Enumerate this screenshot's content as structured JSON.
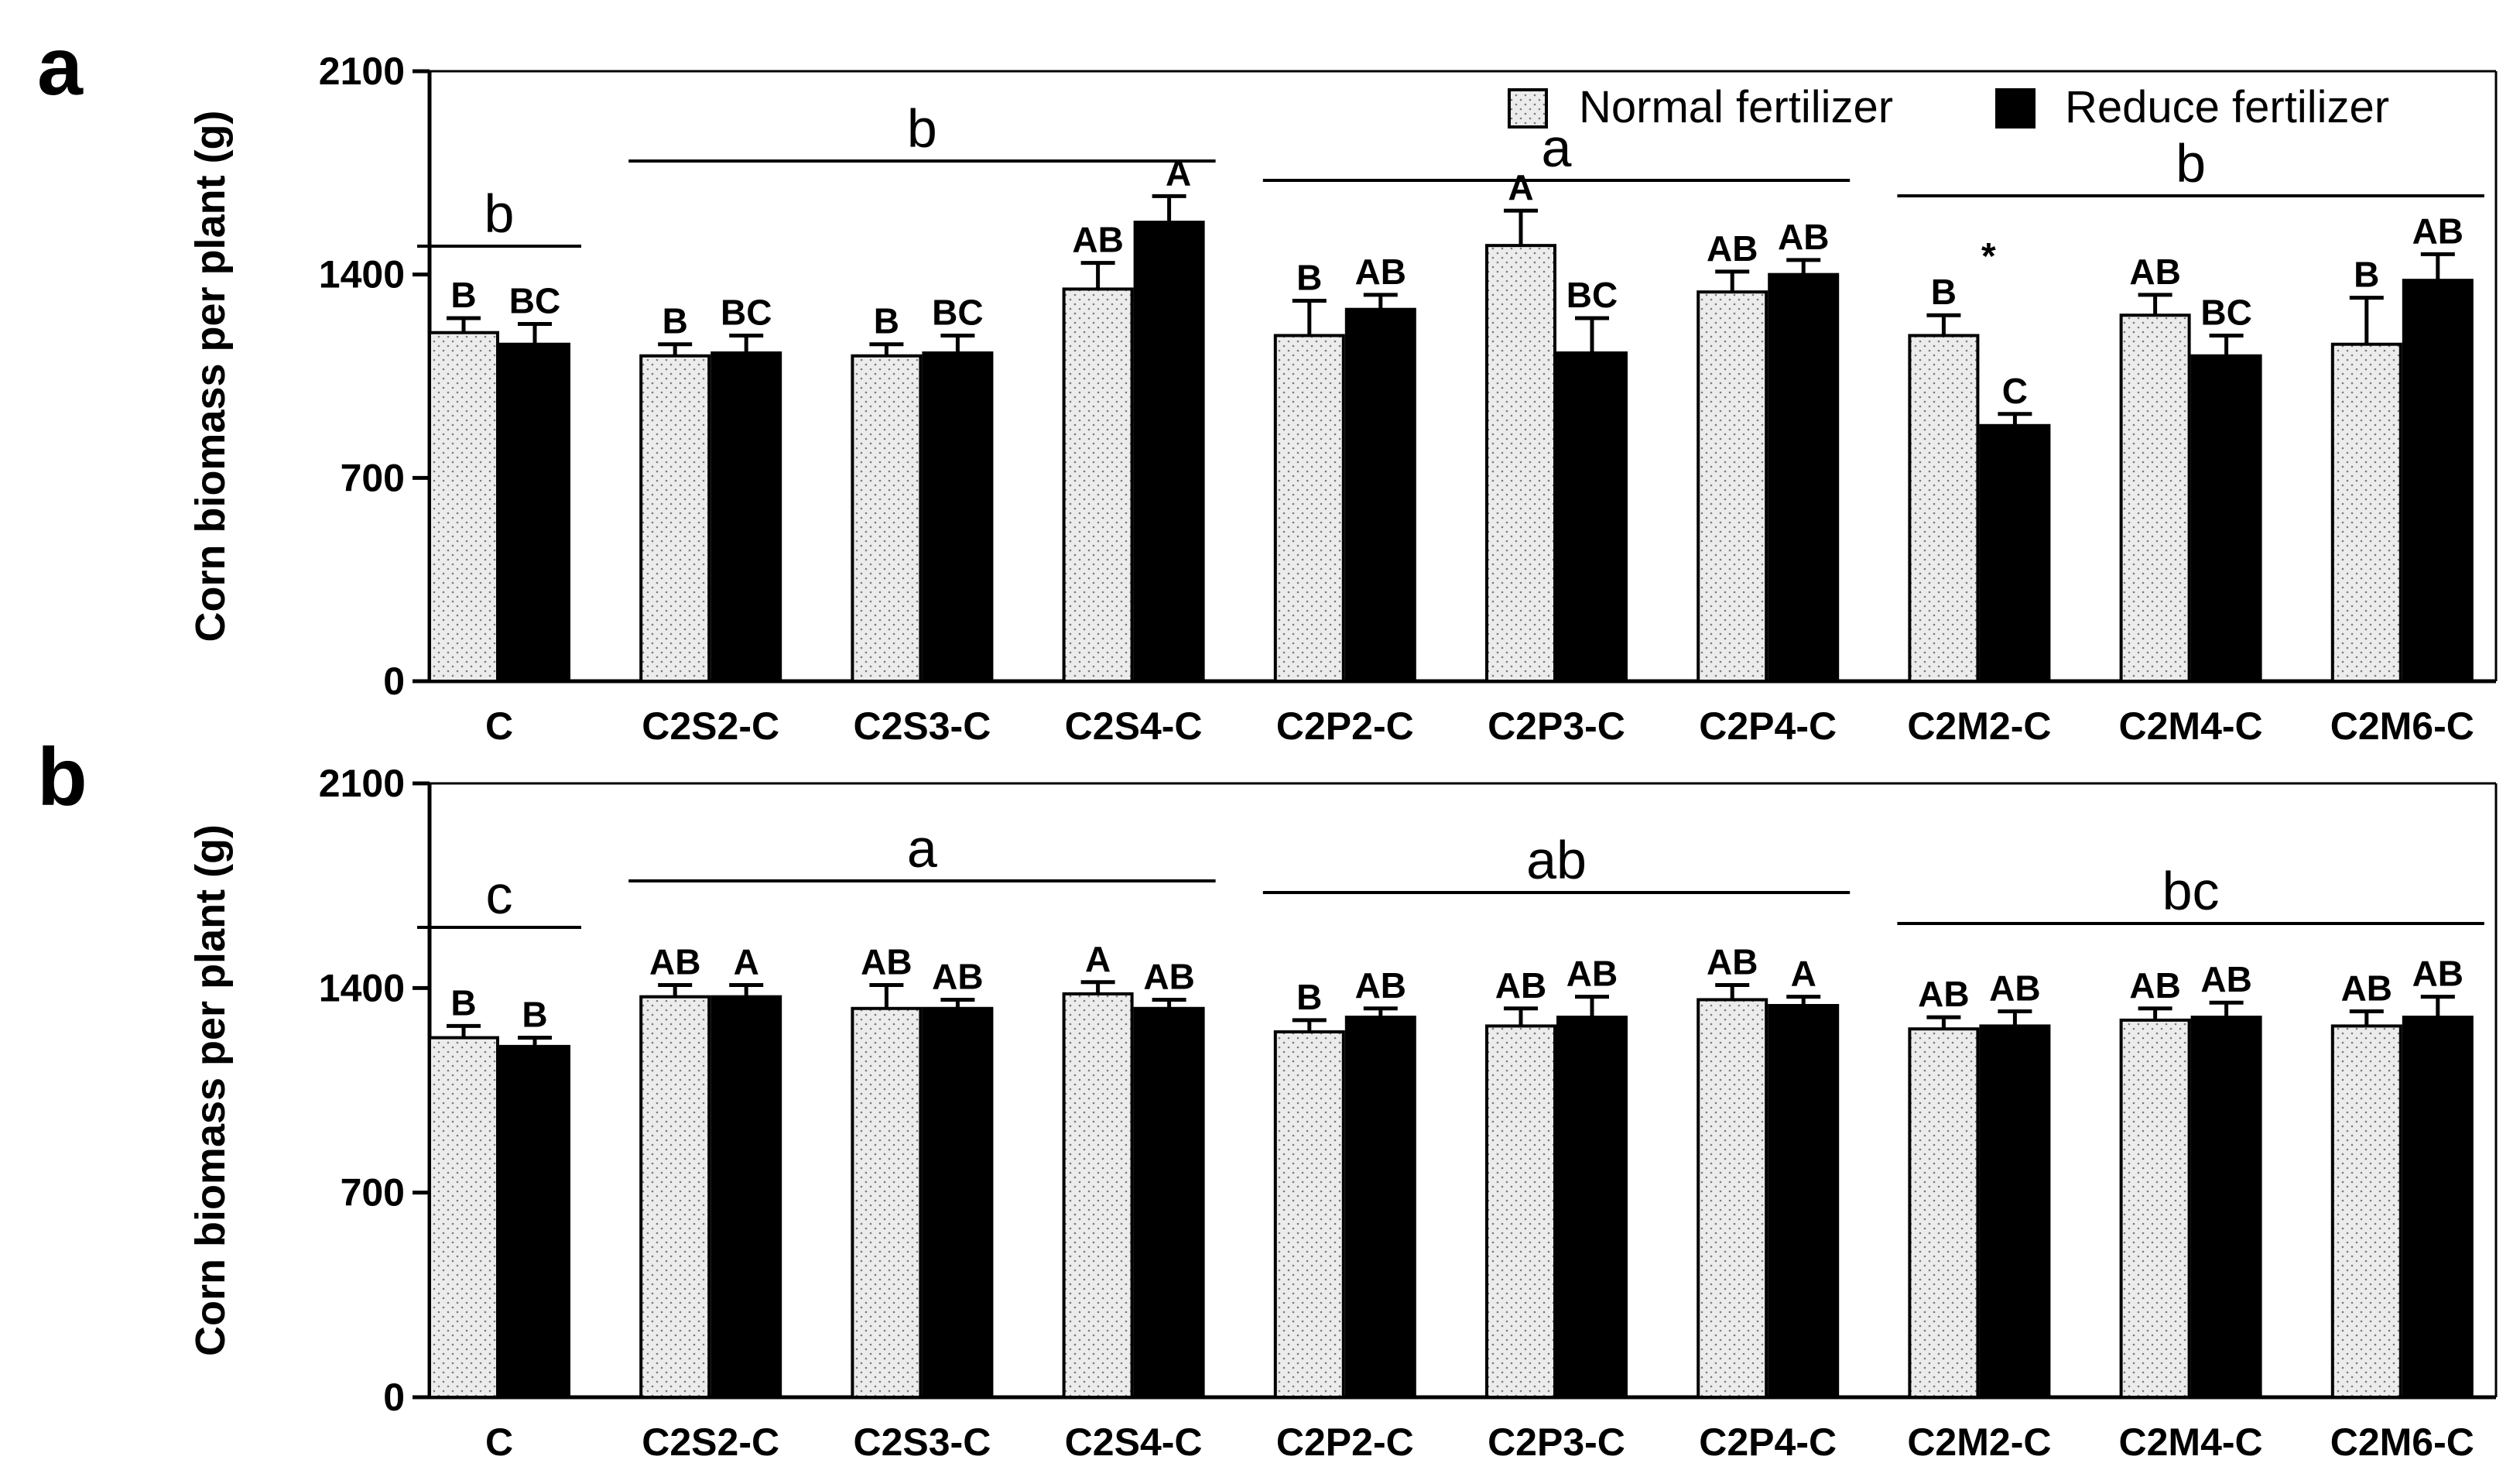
{
  "legend": {
    "normal": "Normal fertilizer",
    "reduce": "Reduce fertilizer"
  },
  "colors": {
    "normal_fill": "#eeeeee",
    "reduce_fill": "#000000",
    "stroke": "#000000"
  },
  "chart_data": [
    {
      "panel": "a",
      "type": "bar",
      "ylabel": "Corn biomass per plant (g)",
      "ylim": [
        0,
        2100
      ],
      "yticks": [
        "0",
        "700",
        "1400",
        "2100"
      ],
      "categories": [
        "C",
        "C2S2-C",
        "C2S3-C",
        "C2S4-C",
        "C2P2-C",
        "C2P3-C",
        "C2P4-C",
        "C2M2-C",
        "C2M4-C",
        "C2M6-C"
      ],
      "series": [
        {
          "name": "Normal fertilizer",
          "values": [
            1200,
            1120,
            1120,
            1350,
            1190,
            1500,
            1340,
            1190,
            1260,
            1160
          ],
          "errors": [
            50,
            40,
            40,
            90,
            120,
            120,
            70,
            70,
            70,
            160
          ],
          "labels": [
            "B",
            "B",
            "B",
            "AB",
            "B",
            "A",
            "AB",
            "B",
            "AB",
            "B"
          ]
        },
        {
          "name": "Reduce fertilizer",
          "values": [
            1160,
            1130,
            1130,
            1580,
            1280,
            1130,
            1400,
            880,
            1120,
            1380
          ],
          "errors": [
            70,
            60,
            60,
            90,
            50,
            120,
            50,
            40,
            70,
            90
          ],
          "labels": [
            "BC",
            "BC",
            "BC",
            "A",
            "AB",
            "BC",
            "AB",
            "C",
            "BC",
            "AB"
          ]
        }
      ],
      "groups": [
        {
          "label": "b",
          "from": 0,
          "to": 0
        },
        {
          "label": "b",
          "from": 1,
          "to": 3
        },
        {
          "label": "a",
          "from": 4,
          "to": 6
        },
        {
          "label": "b",
          "from": 7,
          "to": 9
        }
      ],
      "annotations": [
        {
          "text": "*",
          "category": 7
        }
      ]
    },
    {
      "panel": "b",
      "type": "bar",
      "ylabel": "Corn biomass per plant (g)",
      "ylim": [
        0,
        2100
      ],
      "yticks": [
        "0",
        "700",
        "1400",
        "2100"
      ],
      "categories": [
        "C",
        "C2S2-C",
        "C2S3-C",
        "C2S4-C",
        "C2P2-C",
        "C2P3-C",
        "C2P4-C",
        "C2M2-C",
        "C2M4-C",
        "C2M6-C"
      ],
      "series": [
        {
          "name": "Normal fertilizer",
          "values": [
            1230,
            1370,
            1330,
            1380,
            1250,
            1270,
            1360,
            1260,
            1290,
            1270
          ],
          "errors": [
            40,
            40,
            80,
            40,
            40,
            60,
            50,
            40,
            40,
            50
          ],
          "labels": [
            "B",
            "AB",
            "AB",
            "A",
            "B",
            "AB",
            "AB",
            "AB",
            "AB",
            "AB"
          ]
        },
        {
          "name": "Reduce fertilizer",
          "values": [
            1200,
            1370,
            1330,
            1330,
            1300,
            1300,
            1340,
            1270,
            1300,
            1300
          ],
          "errors": [
            30,
            40,
            30,
            30,
            30,
            70,
            30,
            50,
            50,
            70
          ],
          "labels": [
            "B",
            "A",
            "AB",
            "AB",
            "AB",
            "AB",
            "A",
            "AB",
            "AB",
            "AB"
          ]
        }
      ],
      "groups": [
        {
          "label": "c",
          "from": 0,
          "to": 0
        },
        {
          "label": "a",
          "from": 1,
          "to": 3
        },
        {
          "label": "ab",
          "from": 4,
          "to": 6
        },
        {
          "label": "bc",
          "from": 7,
          "to": 9
        }
      ],
      "annotations": []
    }
  ]
}
